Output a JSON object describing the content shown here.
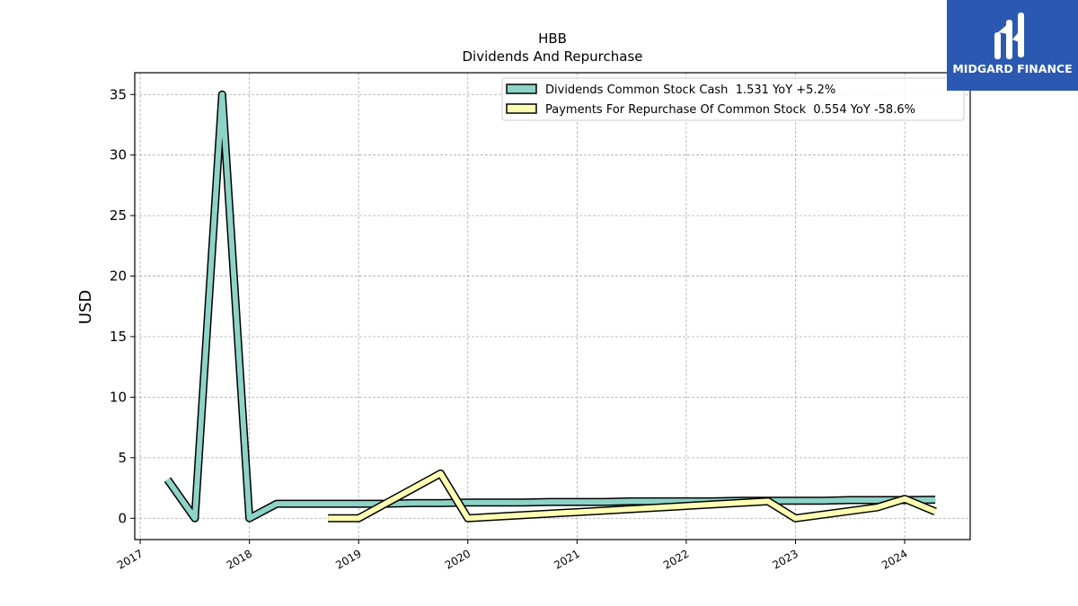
{
  "chart_data": {
    "type": "line",
    "title": "HBB",
    "subtitle": "Dividends And Repurchase",
    "ylabel": "USD",
    "xlabel": "",
    "xlim": [
      2016.95,
      2024.6
    ],
    "ylim": [
      -1.76,
      36.8
    ],
    "xticks": [
      {
        "value": 2017,
        "label": "2017"
      },
      {
        "value": 2018,
        "label": "2018"
      },
      {
        "value": 2019,
        "label": "2019"
      },
      {
        "value": 2020,
        "label": "2020"
      },
      {
        "value": 2021,
        "label": "2021"
      },
      {
        "value": 2022,
        "label": "2022"
      },
      {
        "value": 2023,
        "label": "2023"
      },
      {
        "value": 2024,
        "label": "2024"
      }
    ],
    "yticks": [
      {
        "value": 0,
        "label": "0"
      },
      {
        "value": 5,
        "label": "5"
      },
      {
        "value": 10,
        "label": "10"
      },
      {
        "value": 15,
        "label": "15"
      },
      {
        "value": 20,
        "label": "20"
      },
      {
        "value": 25,
        "label": "25"
      },
      {
        "value": 30,
        "label": "30"
      },
      {
        "value": 35,
        "label": "35"
      }
    ],
    "grid": true,
    "legend_position": "top-right",
    "series": [
      {
        "name": "Dividends Common Stock Cash  1.531 YoY +5.2%",
        "color": "#8dd3c7",
        "points": [
          [
            2017.25,
            3.2
          ],
          [
            2017.5,
            0.0
          ],
          [
            2017.75,
            35.0
          ],
          [
            2018.0,
            0.0
          ],
          [
            2018.25,
            1.2
          ],
          [
            2018.5,
            1.2
          ],
          [
            2018.75,
            1.2
          ],
          [
            2019.0,
            1.2
          ],
          [
            2019.25,
            1.2
          ],
          [
            2019.5,
            1.25
          ],
          [
            2019.75,
            1.25
          ],
          [
            2020.0,
            1.3
          ],
          [
            2020.25,
            1.3
          ],
          [
            2020.5,
            1.3
          ],
          [
            2020.75,
            1.35
          ],
          [
            2021.0,
            1.35
          ],
          [
            2021.25,
            1.35
          ],
          [
            2021.5,
            1.4
          ],
          [
            2021.75,
            1.4
          ],
          [
            2022.0,
            1.4
          ],
          [
            2022.25,
            1.4
          ],
          [
            2022.5,
            1.45
          ],
          [
            2022.75,
            1.45
          ],
          [
            2023.0,
            1.45
          ],
          [
            2023.25,
            1.45
          ],
          [
            2023.5,
            1.5
          ],
          [
            2023.75,
            1.5
          ],
          [
            2024.0,
            1.5
          ],
          [
            2024.28,
            1.53
          ]
        ]
      },
      {
        "name": "Payments For Repurchase Of Common Stock  0.554 YoY -58.6%",
        "color": "#ffffb3",
        "points": [
          [
            2018.72,
            0.0
          ],
          [
            2019.0,
            0.0
          ],
          [
            2019.75,
            3.7
          ],
          [
            2020.0,
            0.0
          ],
          [
            2022.75,
            1.4
          ],
          [
            2023.0,
            0.0
          ],
          [
            2023.75,
            0.9
          ],
          [
            2024.0,
            1.6
          ],
          [
            2024.28,
            0.55
          ]
        ]
      }
    ]
  },
  "logo": {
    "name": "MIDGARD FINANCE"
  }
}
